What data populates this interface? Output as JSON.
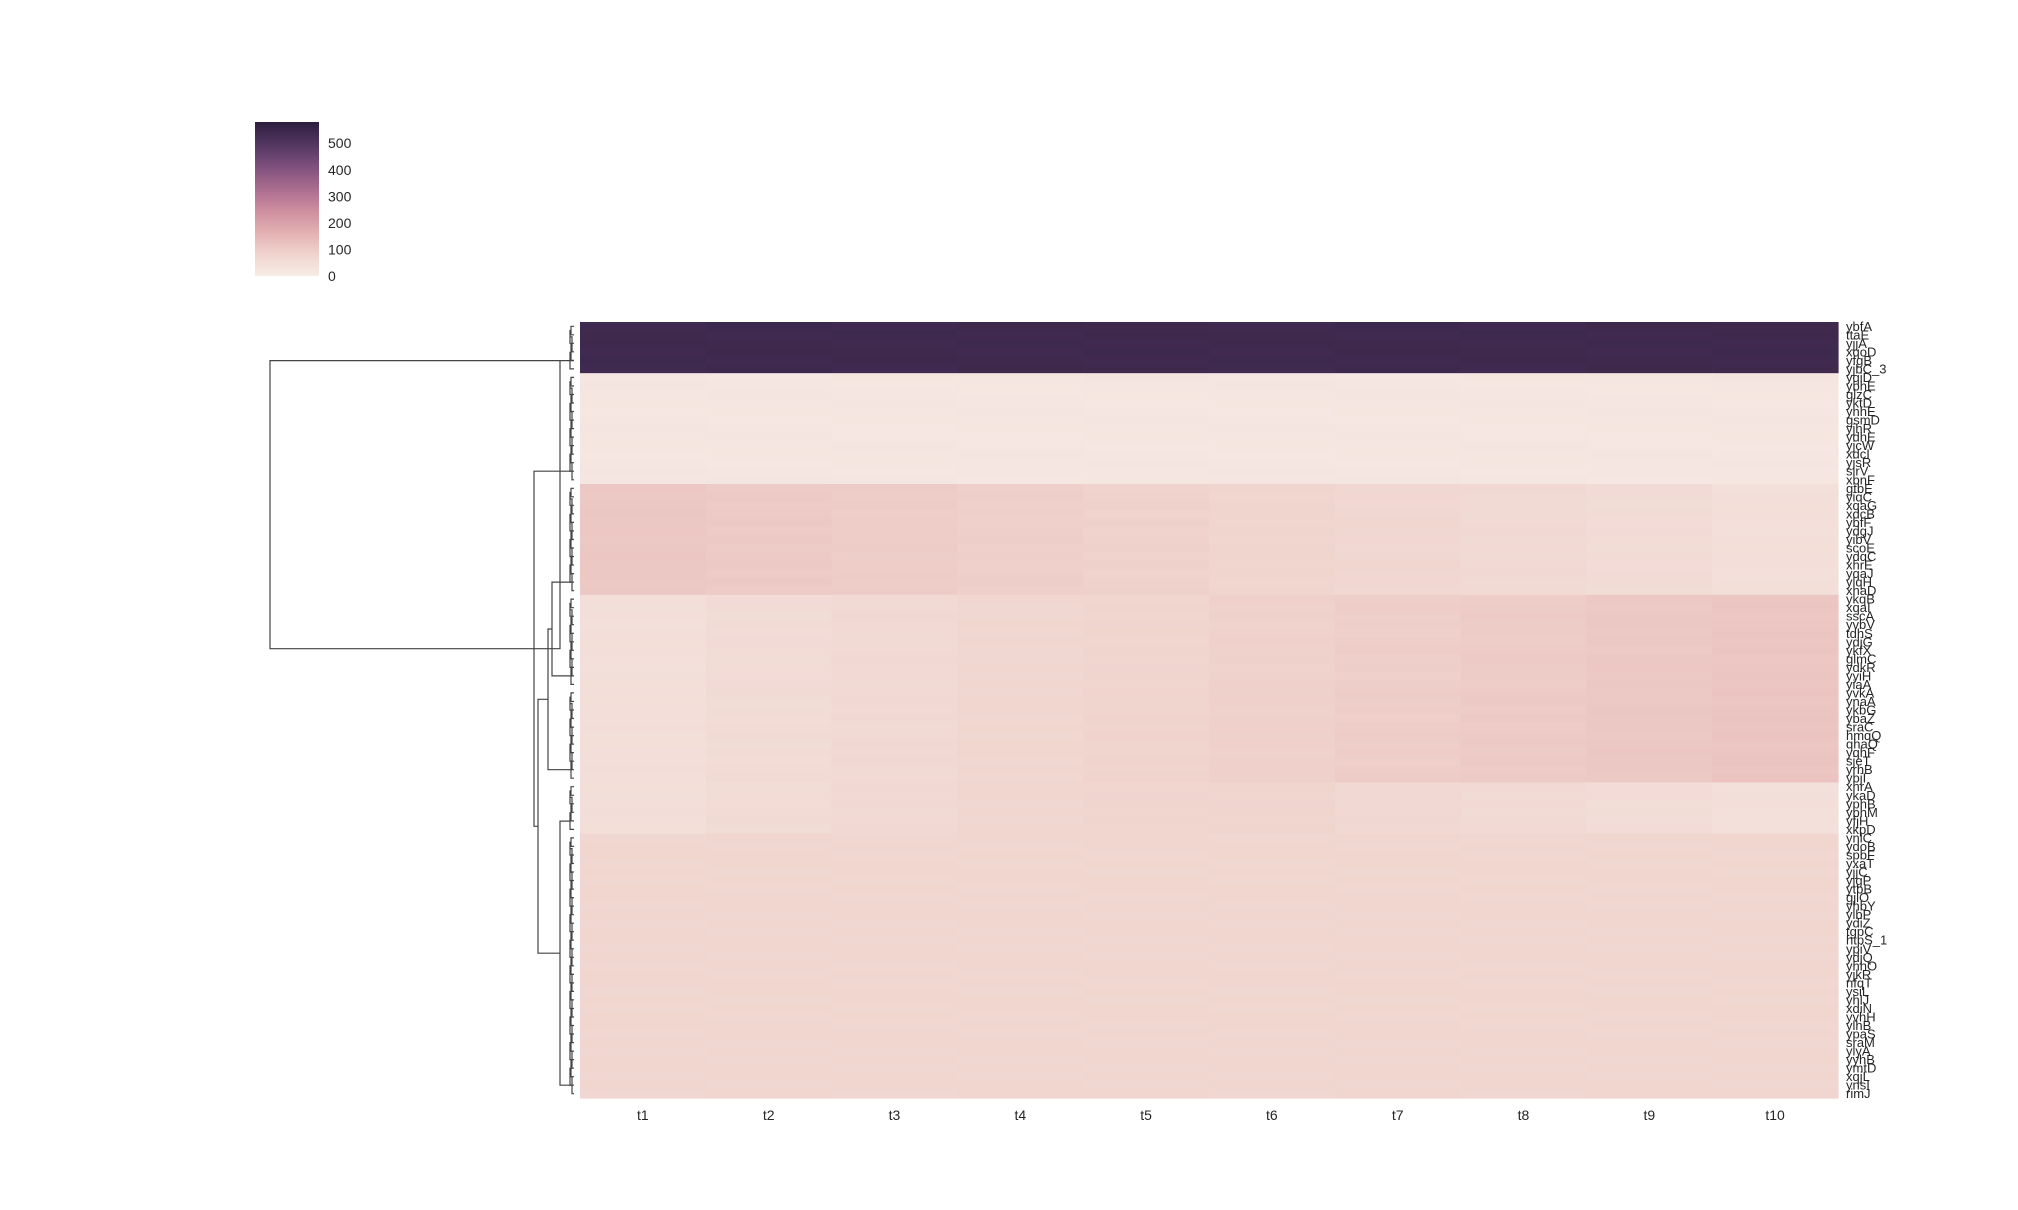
{
  "chart_data": {
    "type": "heatmap",
    "title": "",
    "xlabel": "",
    "ylabel": "",
    "x_categories": [
      "t1",
      "t2",
      "t3",
      "t4",
      "t5",
      "t6",
      "t7",
      "t8",
      "t9",
      "t10"
    ],
    "row_labels": [
      "ybfA",
      "ttaE",
      "yjjA",
      "xqoD",
      "yfgB",
      "yjbC_3",
      "yqiD",
      "ybhE",
      "glzC",
      "yktD",
      "yhhE",
      "gsmD",
      "yjhR",
      "ydhE",
      "yjcW",
      "xdcI",
      "yjsR",
      "slrV",
      "xbnF",
      "gtbE",
      "yiqC",
      "xqaG",
      "xdcB",
      "ybfF",
      "ydgJ",
      "yibV",
      "scoE",
      "ydqC",
      "xhrE",
      "yqaJ",
      "ylqH",
      "xhaD",
      "ykqB",
      "xqaI",
      "sscA",
      "yvbV",
      "tdhS",
      "ydjG",
      "ykfX",
      "glmC",
      "ydkR",
      "yyiH",
      "yiaA",
      "yvkA",
      "ynaA",
      "ykbG",
      "ybaZ",
      "sraC",
      "hmqQ",
      "qhaQ",
      "yqhF",
      "sjeT",
      "yrhB",
      "ybjI",
      "xhrA",
      "ykaD",
      "yphB",
      "ybhM",
      "yfjH",
      "xkpD",
      "ynlC",
      "ydoB",
      "spbF",
      "yxaT",
      "yjjC",
      "yjgP",
      "ytbB",
      "gjlO",
      "yhbY",
      "ylbP",
      "ydiZ",
      "tgpC",
      "htpS_1",
      "ypiV",
      "ydjQ",
      "yhhO",
      "yjkR",
      "nfqT",
      "ysiL",
      "yhlJ",
      "xdiN",
      "yvhH",
      "ylhB",
      "ypaS",
      "sraM",
      "ylyA",
      "yyhB",
      "ymtD",
      "xqjL",
      "ynsI",
      "rimJ"
    ],
    "colorbar": {
      "min": 0,
      "max": 580,
      "ticks": [
        "0",
        "100",
        "200",
        "300",
        "400",
        "500"
      ],
      "tick_values": [
        0,
        100,
        200,
        300,
        400,
        500
      ],
      "colors": [
        "#f7ece7",
        "#f0d3cd",
        "#e3b0b1",
        "#cc8d9e",
        "#a86b8e",
        "#7d4f7c",
        "#523660",
        "#2d1e3e"
      ]
    },
    "row_groups": [
      {
        "from": 0,
        "to": 5,
        "values": [
          540,
          540,
          540,
          540,
          540,
          540,
          540,
          540,
          540,
          540
        ]
      },
      {
        "from": 6,
        "to": 18,
        "values": [
          20,
          20,
          20,
          20,
          20,
          20,
          20,
          20,
          20,
          20
        ]
      },
      {
        "from": 19,
        "to": 31,
        "values": [
          110,
          104,
          98,
          92,
          85,
          77,
          70,
          62,
          55,
          44
        ]
      },
      {
        "from": 32,
        "to": 42,
        "values": [
          44,
          55,
          63,
          71,
          78,
          86,
          94,
          101,
          108,
          114
        ]
      },
      {
        "from": 43,
        "to": 53,
        "values": [
          46,
          56,
          64,
          72,
          80,
          88,
          96,
          104,
          110,
          116
        ]
      },
      {
        "from": 54,
        "to": 59,
        "values": [
          46,
          56,
          64,
          72,
          78,
          78,
          68,
          60,
          52,
          42
        ]
      },
      {
        "from": 60,
        "to": 90,
        "values": [
          72,
          72,
          72,
          72,
          72,
          72,
          72,
          72,
          72,
          72
        ]
      }
    ]
  }
}
